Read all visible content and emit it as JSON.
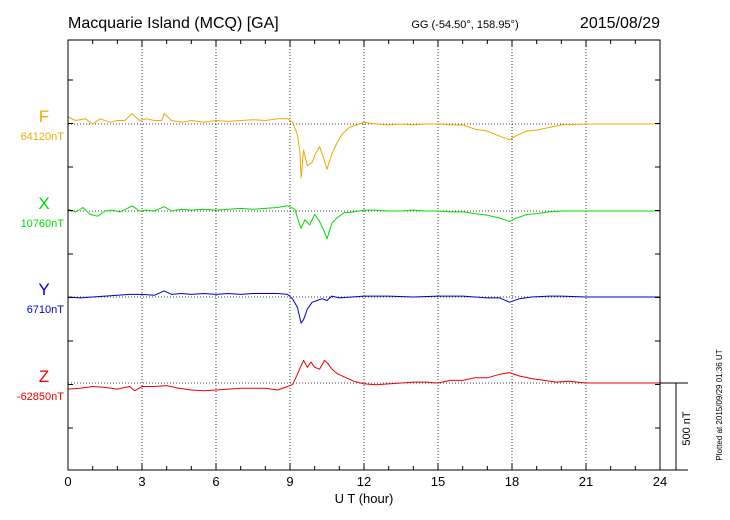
{
  "header": {
    "title": "Macquarie Island (MCQ)  [GA]",
    "coordinates": "GG (-54.50°, 158.95°)",
    "date": "2015/08/29"
  },
  "footer": {
    "plotted_note": "Plotted at 2015/09/29 01:36 UT"
  },
  "scale_bar": {
    "label": "500 nT",
    "value_nT": 500
  },
  "chart_data": {
    "type": "line",
    "title": "Macquarie Island (MCQ)  [GA]",
    "xlabel": "U T (hour)",
    "ylabel": "",
    "xlim": [
      0,
      24
    ],
    "x_ticks": [
      0,
      3,
      6,
      9,
      12,
      15,
      18,
      21,
      24
    ],
    "x_tick_labels": [
      "0",
      "3",
      "6",
      "9",
      "12",
      "15",
      "18",
      "21",
      "24"
    ],
    "grid": true,
    "y_unit": "nT",
    "series": [
      {
        "name": "F",
        "baseline_label": "64120nT",
        "baseline_nT": 64120,
        "color": "#f0a800",
        "points": [
          [
            0,
            64160
          ],
          [
            0.3,
            64140
          ],
          [
            0.7,
            64150
          ],
          [
            1.0,
            64120
          ],
          [
            1.3,
            64150
          ],
          [
            1.7,
            64130
          ],
          [
            2.0,
            64140
          ],
          [
            2.3,
            64140
          ],
          [
            2.6,
            64180
          ],
          [
            2.9,
            64140
          ],
          [
            3.2,
            64150
          ],
          [
            3.5,
            64140
          ],
          [
            3.8,
            64140
          ],
          [
            3.9,
            64180
          ],
          [
            4.2,
            64140
          ],
          [
            4.6,
            64130
          ],
          [
            5.0,
            64140
          ],
          [
            5.5,
            64130
          ],
          [
            6.0,
            64140
          ],
          [
            6.5,
            64135
          ],
          [
            7.0,
            64140
          ],
          [
            7.5,
            64145
          ],
          [
            8.0,
            64140
          ],
          [
            8.5,
            64150
          ],
          [
            8.9,
            64150
          ],
          [
            9.1,
            64130
          ],
          [
            9.3,
            64060
          ],
          [
            9.4,
            63960
          ],
          [
            9.45,
            63810
          ],
          [
            9.55,
            63970
          ],
          [
            9.7,
            63880
          ],
          [
            9.9,
            63900
          ],
          [
            10.0,
            63940
          ],
          [
            10.2,
            63990
          ],
          [
            10.35,
            63930
          ],
          [
            10.5,
            63860
          ],
          [
            10.7,
            63950
          ],
          [
            10.9,
            64010
          ],
          [
            11.1,
            64060
          ],
          [
            11.4,
            64100
          ],
          [
            11.7,
            64115
          ],
          [
            12.0,
            64130
          ],
          [
            12.5,
            64120
          ],
          [
            13,
            64115
          ],
          [
            13.5,
            64120
          ],
          [
            14,
            64115
          ],
          [
            14.5,
            64120
          ],
          [
            15,
            64120
          ],
          [
            15.5,
            64115
          ],
          [
            16,
            64115
          ],
          [
            16.5,
            64090
          ],
          [
            17,
            64080
          ],
          [
            17.5,
            64050
          ],
          [
            17.9,
            64030
          ],
          [
            18.2,
            64055
          ],
          [
            18.6,
            64080
          ],
          [
            19,
            64085
          ],
          [
            19.5,
            64100
          ],
          [
            20,
            64115
          ],
          [
            21,
            64120
          ],
          [
            22,
            64120
          ],
          [
            23,
            64120
          ],
          [
            24,
            64120
          ]
        ]
      },
      {
        "name": "X",
        "baseline_label": "10760nT",
        "baseline_nT": 10760,
        "color": "#00dd00",
        "points": [
          [
            0,
            10770
          ],
          [
            0.3,
            10755
          ],
          [
            0.6,
            10780
          ],
          [
            0.9,
            10740
          ],
          [
            1.2,
            10730
          ],
          [
            1.5,
            10760
          ],
          [
            1.8,
            10765
          ],
          [
            2.1,
            10755
          ],
          [
            2.4,
            10775
          ],
          [
            2.6,
            10790
          ],
          [
            2.9,
            10760
          ],
          [
            3.2,
            10765
          ],
          [
            3.5,
            10760
          ],
          [
            3.9,
            10785
          ],
          [
            4.2,
            10760
          ],
          [
            4.6,
            10770
          ],
          [
            5,
            10765
          ],
          [
            5.5,
            10770
          ],
          [
            6,
            10765
          ],
          [
            6.5,
            10770
          ],
          [
            7,
            10775
          ],
          [
            7.5,
            10770
          ],
          [
            8,
            10775
          ],
          [
            8.5,
            10780
          ],
          [
            8.9,
            10790
          ],
          [
            9.2,
            10770
          ],
          [
            9.35,
            10700
          ],
          [
            9.45,
            10660
          ],
          [
            9.6,
            10710
          ],
          [
            9.8,
            10680
          ],
          [
            10.0,
            10740
          ],
          [
            10.2,
            10700
          ],
          [
            10.4,
            10640
          ],
          [
            10.5,
            10600
          ],
          [
            10.7,
            10690
          ],
          [
            10.9,
            10720
          ],
          [
            11.2,
            10750
          ],
          [
            11.6,
            10755
          ],
          [
            12,
            10765
          ],
          [
            12.5,
            10765
          ],
          [
            13,
            10760
          ],
          [
            13.5,
            10760
          ],
          [
            14,
            10765
          ],
          [
            14.5,
            10760
          ],
          [
            15,
            10760
          ],
          [
            15.5,
            10755
          ],
          [
            16,
            10755
          ],
          [
            16.5,
            10745
          ],
          [
            17,
            10735
          ],
          [
            17.5,
            10720
          ],
          [
            17.9,
            10700
          ],
          [
            18.2,
            10720
          ],
          [
            18.6,
            10740
          ],
          [
            19,
            10745
          ],
          [
            19.5,
            10755
          ],
          [
            20,
            10760
          ],
          [
            21,
            10760
          ],
          [
            22,
            10760
          ],
          [
            23,
            10760
          ],
          [
            24,
            10760
          ]
        ]
      },
      {
        "name": "Y",
        "baseline_label": "6710nT",
        "baseline_nT": 6710,
        "color": "#0000cc",
        "points": [
          [
            0,
            6710
          ],
          [
            0.5,
            6705
          ],
          [
            1,
            6710
          ],
          [
            1.5,
            6715
          ],
          [
            2,
            6720
          ],
          [
            2.5,
            6725
          ],
          [
            3,
            6725
          ],
          [
            3.5,
            6720
          ],
          [
            3.9,
            6745
          ],
          [
            4.2,
            6725
          ],
          [
            4.6,
            6730
          ],
          [
            5,
            6725
          ],
          [
            5.5,
            6730
          ],
          [
            6,
            6725
          ],
          [
            6.5,
            6730
          ],
          [
            7,
            6725
          ],
          [
            7.5,
            6730
          ],
          [
            8,
            6730
          ],
          [
            8.5,
            6730
          ],
          [
            8.9,
            6725
          ],
          [
            9.1,
            6700
          ],
          [
            9.3,
            6650
          ],
          [
            9.45,
            6560
          ],
          [
            9.55,
            6580
          ],
          [
            9.7,
            6640
          ],
          [
            9.9,
            6680
          ],
          [
            10.1,
            6690
          ],
          [
            10.3,
            6700
          ],
          [
            10.5,
            6690
          ],
          [
            10.7,
            6715
          ],
          [
            11,
            6705
          ],
          [
            11.5,
            6710
          ],
          [
            12,
            6715
          ],
          [
            13,
            6715
          ],
          [
            14,
            6710
          ],
          [
            15,
            6715
          ],
          [
            16,
            6715
          ],
          [
            16.5,
            6710
          ],
          [
            17,
            6705
          ],
          [
            17.5,
            6705
          ],
          [
            17.9,
            6680
          ],
          [
            18.3,
            6700
          ],
          [
            18.8,
            6710
          ],
          [
            19.5,
            6715
          ],
          [
            20,
            6715
          ],
          [
            21,
            6710
          ],
          [
            22,
            6710
          ],
          [
            23,
            6710
          ],
          [
            24,
            6710
          ]
        ]
      },
      {
        "name": "Z",
        "baseline_label": "-62850nT",
        "baseline_nT": -62850,
        "color": "#ee0000",
        "points": [
          [
            0,
            -62885
          ],
          [
            0.5,
            -62880
          ],
          [
            1,
            -62870
          ],
          [
            1.5,
            -62875
          ],
          [
            2,
            -62885
          ],
          [
            2.5,
            -62870
          ],
          [
            2.7,
            -62895
          ],
          [
            3,
            -62870
          ],
          [
            3.5,
            -62870
          ],
          [
            4,
            -62865
          ],
          [
            4.5,
            -62880
          ],
          [
            5,
            -62890
          ],
          [
            5.5,
            -62895
          ],
          [
            6,
            -62890
          ],
          [
            6.5,
            -62885
          ],
          [
            7,
            -62880
          ],
          [
            7.5,
            -62880
          ],
          [
            8,
            -62880
          ],
          [
            8.5,
            -62890
          ],
          [
            8.8,
            -62875
          ],
          [
            9.1,
            -62860
          ],
          [
            9.3,
            -62800
          ],
          [
            9.45,
            -62750
          ],
          [
            9.55,
            -62720
          ],
          [
            9.7,
            -62760
          ],
          [
            9.85,
            -62730
          ],
          [
            10.0,
            -62760
          ],
          [
            10.2,
            -62770
          ],
          [
            10.4,
            -62720
          ],
          [
            10.55,
            -62740
          ],
          [
            10.7,
            -62770
          ],
          [
            10.9,
            -62795
          ],
          [
            11.2,
            -62815
          ],
          [
            11.6,
            -62840
          ],
          [
            12,
            -62855
          ],
          [
            12.5,
            -62860
          ],
          [
            13,
            -62855
          ],
          [
            13.5,
            -62850
          ],
          [
            14,
            -62845
          ],
          [
            14.5,
            -62845
          ],
          [
            15,
            -62850
          ],
          [
            15.5,
            -62835
          ],
          [
            16,
            -62835
          ],
          [
            16.5,
            -62820
          ],
          [
            17,
            -62820
          ],
          [
            17.5,
            -62800
          ],
          [
            17.9,
            -62790
          ],
          [
            18.3,
            -62810
          ],
          [
            18.8,
            -62825
          ],
          [
            19.3,
            -62835
          ],
          [
            19.8,
            -62845
          ],
          [
            20.3,
            -62840
          ],
          [
            21,
            -62850
          ],
          [
            22,
            -62850
          ],
          [
            23,
            -62850
          ],
          [
            24,
            -62850
          ]
        ]
      }
    ]
  }
}
